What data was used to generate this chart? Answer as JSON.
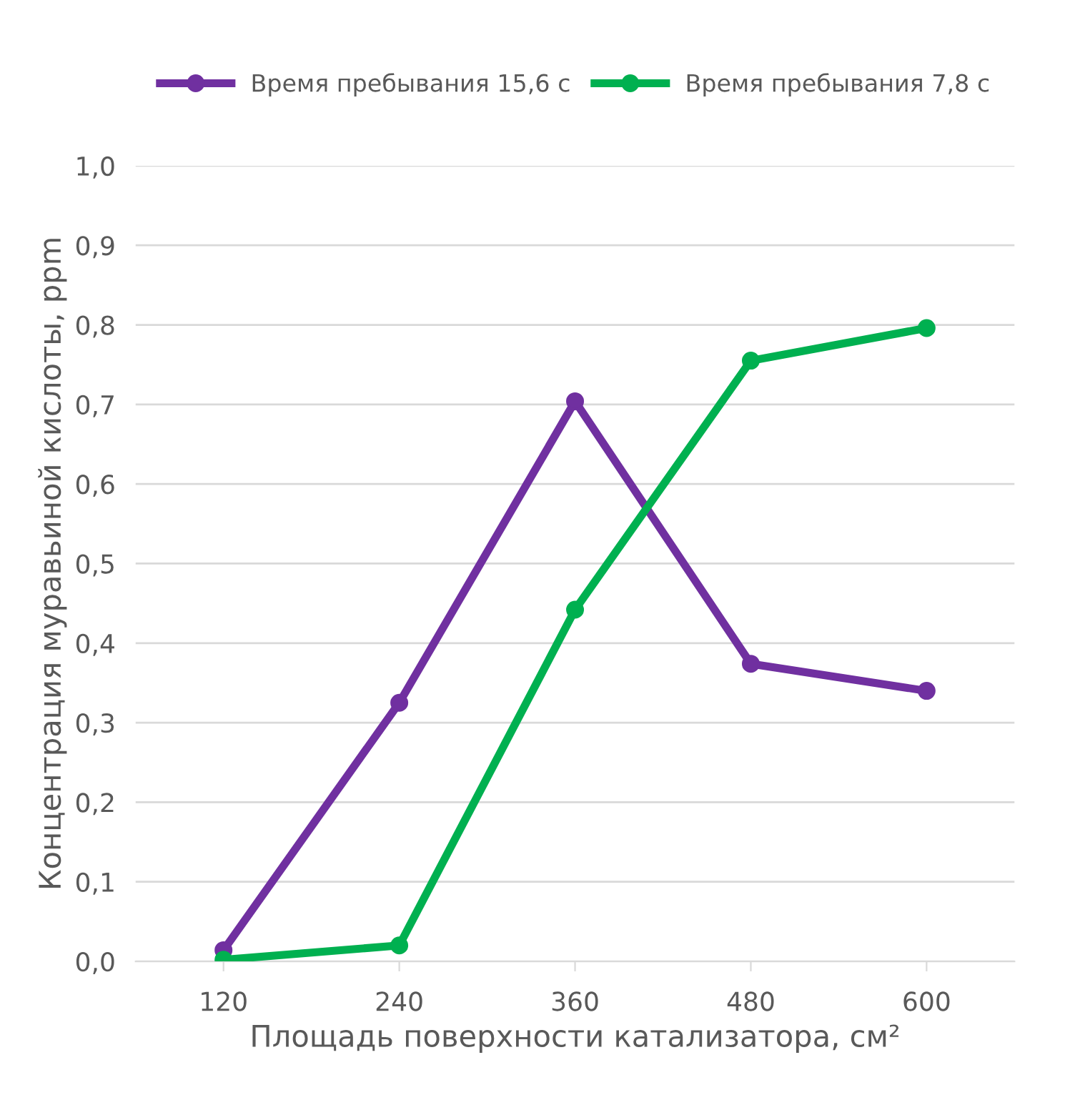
{
  "chart_data": {
    "type": "line",
    "xlabel": "Площадь поверхности катализатора, см²",
    "ylabel": "Концентрация муравьиной кислоты, ppm",
    "categories": [
      "120",
      "240",
      "360",
      "480",
      "600"
    ],
    "series": [
      {
        "name": "Время пребывания 15,6 с",
        "color": "#7030a0",
        "values": [
          0.014,
          0.325,
          0.704,
          0.374,
          0.34
        ]
      },
      {
        "name": "Время пребывания 7,8 с",
        "color": "#00b050",
        "values": [
          0.002,
          0.02,
          0.442,
          0.755,
          0.796
        ]
      }
    ],
    "ylim": [
      0,
      1.0
    ],
    "yticks": [
      {
        "value": 0,
        "label": "0,0"
      },
      {
        "value": 0.1,
        "label": "0,1"
      },
      {
        "value": 0.2,
        "label": "0,2"
      },
      {
        "value": 0.3,
        "label": "0,3"
      },
      {
        "value": 0.4,
        "label": "0,4"
      },
      {
        "value": 0.5,
        "label": "0,5"
      },
      {
        "value": 0.6,
        "label": "0,6"
      },
      {
        "value": 0.7,
        "label": "0,7"
      },
      {
        "value": 0.8,
        "label": "0,8"
      },
      {
        "value": 0.9,
        "label": "0,9"
      },
      {
        "value": 1.0,
        "label": "1,0"
      }
    ],
    "grid": "y",
    "legend": "top",
    "marker": "circle",
    "line_style": "solid"
  }
}
